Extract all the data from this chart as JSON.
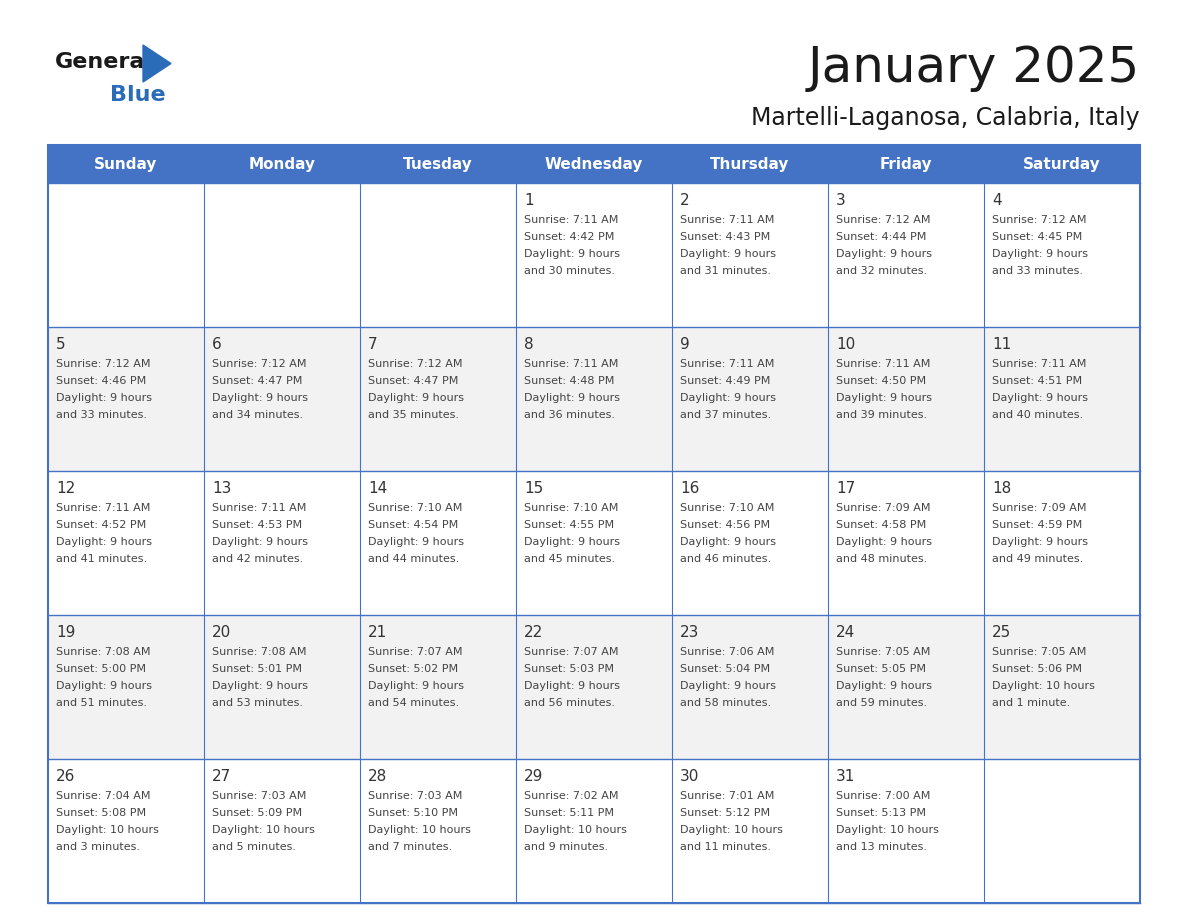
{
  "title": "January 2025",
  "subtitle": "Martelli-Laganosa, Calabria, Italy",
  "header_bg": "#4472C4",
  "header_text": "#FFFFFF",
  "cell_bg_white": "#FFFFFF",
  "cell_bg_gray": "#F2F2F2",
  "border_color": "#4472C4",
  "day_headers": [
    "Sunday",
    "Monday",
    "Tuesday",
    "Wednesday",
    "Thursday",
    "Friday",
    "Saturday"
  ],
  "title_color": "#1a1a1a",
  "subtitle_color": "#1a1a1a",
  "day_num_color": "#333333",
  "text_color": "#444444",
  "weeks": [
    [
      {
        "day": "",
        "info": ""
      },
      {
        "day": "",
        "info": ""
      },
      {
        "day": "",
        "info": ""
      },
      {
        "day": "1",
        "info": "Sunrise: 7:11 AM\nSunset: 4:42 PM\nDaylight: 9 hours\nand 30 minutes."
      },
      {
        "day": "2",
        "info": "Sunrise: 7:11 AM\nSunset: 4:43 PM\nDaylight: 9 hours\nand 31 minutes."
      },
      {
        "day": "3",
        "info": "Sunrise: 7:12 AM\nSunset: 4:44 PM\nDaylight: 9 hours\nand 32 minutes."
      },
      {
        "day": "4",
        "info": "Sunrise: 7:12 AM\nSunset: 4:45 PM\nDaylight: 9 hours\nand 33 minutes."
      }
    ],
    [
      {
        "day": "5",
        "info": "Sunrise: 7:12 AM\nSunset: 4:46 PM\nDaylight: 9 hours\nand 33 minutes."
      },
      {
        "day": "6",
        "info": "Sunrise: 7:12 AM\nSunset: 4:47 PM\nDaylight: 9 hours\nand 34 minutes."
      },
      {
        "day": "7",
        "info": "Sunrise: 7:12 AM\nSunset: 4:47 PM\nDaylight: 9 hours\nand 35 minutes."
      },
      {
        "day": "8",
        "info": "Sunrise: 7:11 AM\nSunset: 4:48 PM\nDaylight: 9 hours\nand 36 minutes."
      },
      {
        "day": "9",
        "info": "Sunrise: 7:11 AM\nSunset: 4:49 PM\nDaylight: 9 hours\nand 37 minutes."
      },
      {
        "day": "10",
        "info": "Sunrise: 7:11 AM\nSunset: 4:50 PM\nDaylight: 9 hours\nand 39 minutes."
      },
      {
        "day": "11",
        "info": "Sunrise: 7:11 AM\nSunset: 4:51 PM\nDaylight: 9 hours\nand 40 minutes."
      }
    ],
    [
      {
        "day": "12",
        "info": "Sunrise: 7:11 AM\nSunset: 4:52 PM\nDaylight: 9 hours\nand 41 minutes."
      },
      {
        "day": "13",
        "info": "Sunrise: 7:11 AM\nSunset: 4:53 PM\nDaylight: 9 hours\nand 42 minutes."
      },
      {
        "day": "14",
        "info": "Sunrise: 7:10 AM\nSunset: 4:54 PM\nDaylight: 9 hours\nand 44 minutes."
      },
      {
        "day": "15",
        "info": "Sunrise: 7:10 AM\nSunset: 4:55 PM\nDaylight: 9 hours\nand 45 minutes."
      },
      {
        "day": "16",
        "info": "Sunrise: 7:10 AM\nSunset: 4:56 PM\nDaylight: 9 hours\nand 46 minutes."
      },
      {
        "day": "17",
        "info": "Sunrise: 7:09 AM\nSunset: 4:58 PM\nDaylight: 9 hours\nand 48 minutes."
      },
      {
        "day": "18",
        "info": "Sunrise: 7:09 AM\nSunset: 4:59 PM\nDaylight: 9 hours\nand 49 minutes."
      }
    ],
    [
      {
        "day": "19",
        "info": "Sunrise: 7:08 AM\nSunset: 5:00 PM\nDaylight: 9 hours\nand 51 minutes."
      },
      {
        "day": "20",
        "info": "Sunrise: 7:08 AM\nSunset: 5:01 PM\nDaylight: 9 hours\nand 53 minutes."
      },
      {
        "day": "21",
        "info": "Sunrise: 7:07 AM\nSunset: 5:02 PM\nDaylight: 9 hours\nand 54 minutes."
      },
      {
        "day": "22",
        "info": "Sunrise: 7:07 AM\nSunset: 5:03 PM\nDaylight: 9 hours\nand 56 minutes."
      },
      {
        "day": "23",
        "info": "Sunrise: 7:06 AM\nSunset: 5:04 PM\nDaylight: 9 hours\nand 58 minutes."
      },
      {
        "day": "24",
        "info": "Sunrise: 7:05 AM\nSunset: 5:05 PM\nDaylight: 9 hours\nand 59 minutes."
      },
      {
        "day": "25",
        "info": "Sunrise: 7:05 AM\nSunset: 5:06 PM\nDaylight: 10 hours\nand 1 minute."
      }
    ],
    [
      {
        "day": "26",
        "info": "Sunrise: 7:04 AM\nSunset: 5:08 PM\nDaylight: 10 hours\nand 3 minutes."
      },
      {
        "day": "27",
        "info": "Sunrise: 7:03 AM\nSunset: 5:09 PM\nDaylight: 10 hours\nand 5 minutes."
      },
      {
        "day": "28",
        "info": "Sunrise: 7:03 AM\nSunset: 5:10 PM\nDaylight: 10 hours\nand 7 minutes."
      },
      {
        "day": "29",
        "info": "Sunrise: 7:02 AM\nSunset: 5:11 PM\nDaylight: 10 hours\nand 9 minutes."
      },
      {
        "day": "30",
        "info": "Sunrise: 7:01 AM\nSunset: 5:12 PM\nDaylight: 10 hours\nand 11 minutes."
      },
      {
        "day": "31",
        "info": "Sunrise: 7:00 AM\nSunset: 5:13 PM\nDaylight: 10 hours\nand 13 minutes."
      },
      {
        "day": "",
        "info": ""
      }
    ]
  ],
  "logo_general_color": "#1a1a1a",
  "logo_blue_color": "#2B6CB8",
  "logo_triangle_color": "#2B6CB8"
}
